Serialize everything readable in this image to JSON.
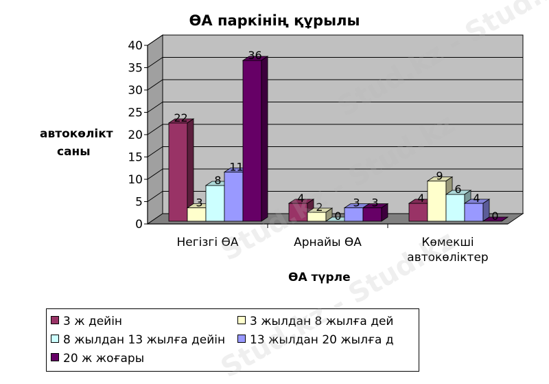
{
  "chart_data": {
    "type": "bar",
    "title": "ӨА паркінің құрылы",
    "xlabel": "ӨА түрле",
    "ylabel": [
      "автокөлікт",
      "саны"
    ],
    "ylim": [
      0,
      40
    ],
    "yticks": [
      "0",
      "5",
      "10",
      "15",
      "20",
      "25",
      "30",
      "35",
      "40"
    ],
    "categories": [
      [
        "Негізгі ӨА"
      ],
      [
        "Арнайы ӨА"
      ],
      [
        "Көмекші",
        "автокөліктер"
      ]
    ],
    "series": [
      {
        "name": "3 ж дейін",
        "values": [
          22,
          4,
          4
        ],
        "color": "#993366"
      },
      {
        "name": "3 жылдан 8 жылға дей",
        "values": [
          3,
          2,
          9
        ],
        "color": "#ffffcc"
      },
      {
        "name": "8 жылдан 13 жылға дейін",
        "values": [
          8,
          0,
          6
        ],
        "color": "#ccffff"
      },
      {
        "name": "13 жылдан 20 жылға д",
        "values": [
          11,
          3,
          4
        ],
        "color": "#9999ff"
      },
      {
        "name": "20 ж жоғары",
        "values": [
          36,
          3,
          0
        ],
        "color": "#660066"
      }
    ],
    "legend_position": "bottom",
    "grid": true,
    "wall_color": "#c0c0c0",
    "floor_color": "#808080"
  },
  "watermark": "Stud.kz - Stud.kz"
}
